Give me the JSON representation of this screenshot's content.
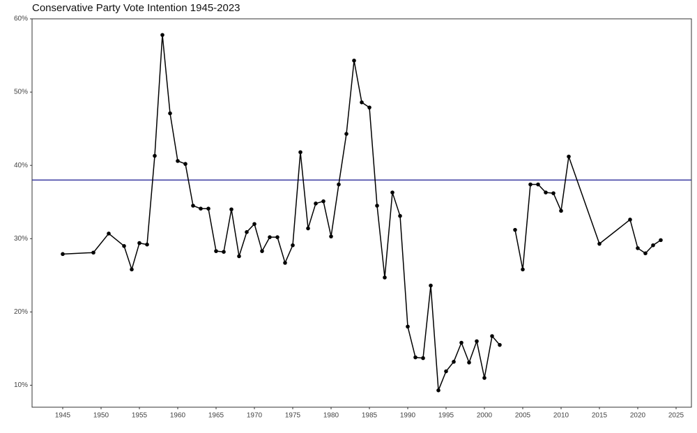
{
  "chart_data": {
    "type": "line",
    "title": "Conservative Party Vote Intention 1945-2023",
    "x": [
      1945,
      1949,
      1951,
      1953,
      1954,
      1955,
      1956,
      1957,
      1958,
      1959,
      1960,
      1961,
      1962,
      1963,
      1964,
      1965,
      1966,
      1967,
      1968,
      1969,
      1970,
      1971,
      1972,
      1973,
      1974,
      1975,
      1976,
      1977,
      1978,
      1979,
      1980,
      1981,
      1982,
      1983,
      1984,
      1985,
      1986,
      1987,
      1988,
      1989,
      1990,
      1991,
      1992,
      1993,
      1994,
      1995,
      1996,
      1997,
      1998,
      1999,
      2000,
      2001,
      2002,
      2003,
      2004,
      2005,
      2006,
      2007,
      2008,
      2009,
      2010,
      2011,
      2015,
      2019,
      2020,
      2021,
      2022,
      2023
    ],
    "series": [
      {
        "color": "#000000",
        "values": [
          27.9,
          28.1,
          30.7,
          29.0,
          25.8,
          29.4,
          29.2,
          41.3,
          57.8,
          47.1,
          40.6,
          40.2,
          34.5,
          34.1,
          34.1,
          28.3,
          28.2,
          34.0,
          27.6,
          30.9,
          32.0,
          28.3,
          30.2,
          30.2,
          26.7,
          29.1,
          41.8,
          31.4,
          34.8,
          35.1,
          30.3,
          37.4,
          44.3,
          54.3,
          48.6,
          47.9,
          34.5,
          24.7,
          36.3,
          33.1,
          18.0,
          13.8,
          13.7,
          23.6,
          9.3,
          11.9,
          13.2,
          15.8,
          13.1,
          16.0,
          11.0,
          16.7,
          15.5,
          null,
          31.2,
          25.8,
          37.4,
          37.4,
          36.3,
          36.2,
          33.8,
          41.2,
          29.3,
          32.6,
          28.7,
          28.0,
          29.1,
          29.8
        ]
      }
    ],
    "hline": {
      "value": 38,
      "color": "#2b2b9a"
    },
    "xlim": [
      1941,
      2027
    ],
    "xticks": [
      1945,
      1950,
      1955,
      1960,
      1965,
      1970,
      1975,
      1980,
      1985,
      1990,
      1995,
      2000,
      2005,
      2010,
      2015,
      2020,
      2025
    ],
    "ylim": [
      7,
      60
    ],
    "yticks": [
      {
        "value": 10,
        "label": "10%"
      },
      {
        "value": 20,
        "label": "20%"
      },
      {
        "value": 30,
        "label": "30%"
      },
      {
        "value": 40,
        "label": "40%"
      },
      {
        "value": 50,
        "label": "50%"
      },
      {
        "value": 60,
        "label": "60%"
      }
    ],
    "grid": false
  }
}
